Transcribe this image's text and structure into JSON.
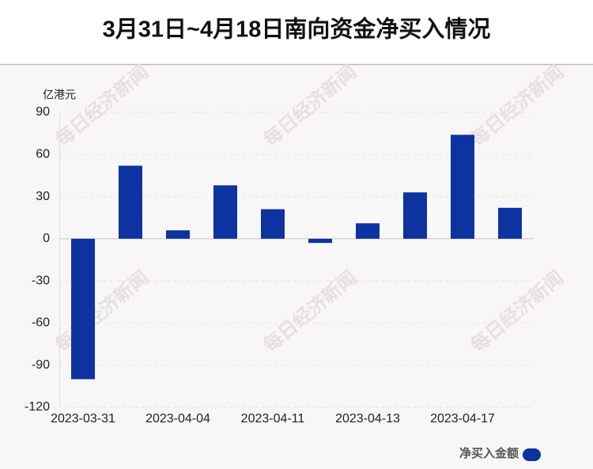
{
  "chart_data": {
    "type": "bar",
    "title": "3月31日~4月18日南向资金净买入情况",
    "y_label": "亿港元",
    "watermark": "每日经济新闻",
    "categories": [
      "2023-03-31",
      null,
      "2023-04-04",
      null,
      "2023-04-11",
      null,
      "2023-04-13",
      null,
      "2023-04-17",
      null
    ],
    "series": [
      {
        "name": "净买入金额",
        "color": "#0d33a0",
        "values": [
          -100,
          52,
          6,
          38,
          21,
          -3,
          11,
          33,
          74,
          22
        ]
      }
    ],
    "ylim": [
      -120,
      90
    ],
    "yticks": [
      -120,
      -90,
      -60,
      -30,
      0,
      30,
      60,
      90
    ],
    "grid": true
  }
}
